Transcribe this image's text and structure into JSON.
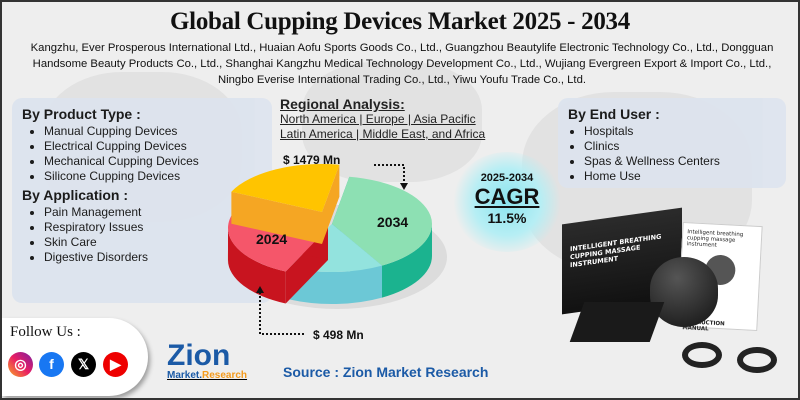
{
  "title": "Global Cupping Devices Market 2025 - 2034",
  "key_players": "Kangzhu, Ever Prosperous International Ltd., Huaian Aofu Sports Goods Co., Ltd., Guangzhou Beautylife Electronic Technology Co., Ltd., Dongguan Handsome Beauty Products Co., Ltd., Shanghai Kangzhu Medical Technology Development Co., Ltd., Wujiang Evergreen Export & Import Co., Ltd., Ningbo Everise International Trading Co., Ltd., Yiwu Youfu Trade Co., Ltd.",
  "product_type": {
    "heading": "By Product Type :",
    "items": [
      "Manual Cupping Devices",
      "Electrical Cupping Devices",
      "Mechanical Cupping Devices",
      "Silicone Cupping Devices"
    ]
  },
  "application": {
    "heading": "By Application :",
    "items": [
      "Pain Management",
      "Respiratory Issues",
      "Skin Care",
      "Digestive Disorders"
    ]
  },
  "end_user": {
    "heading": "By End User :",
    "items": [
      "Hospitals",
      "Clinics",
      "Spas & Wellness Centers",
      "Home Use"
    ]
  },
  "regional": {
    "heading": "Regional Analysis:",
    "line1": "North America | Europe | Asia Pacific",
    "line2": "Latin America | Middle East, and Africa"
  },
  "pie": {
    "label_2034": "2034",
    "label_2024": "2024",
    "value_2034": "$ 1479 Mn",
    "value_2024": "$ 498 Mn",
    "colors": {
      "green": "#8de0b3",
      "red": "#f5566a",
      "yellow": "#ffc400",
      "cyan": "#93e3de"
    }
  },
  "cagr": {
    "period": "2025-2034",
    "label": "CAGR",
    "value": "11.5%"
  },
  "product_box": {
    "line1": "INTELLIGENT BREATHING",
    "line2": "CUPPING MASSAGE INSTRUMENT",
    "manual_title": "Intelligent breathing cupping massage instrument",
    "manual_footer": "INSTRUCTION MANUAL"
  },
  "follow": {
    "label": "Follow Us :",
    "icons": [
      "instagram-icon",
      "facebook-icon",
      "x-icon",
      "youtube-icon"
    ]
  },
  "logo": {
    "text": "Zion",
    "sub1": "Market.",
    "sub2": "Research"
  },
  "source": "Source : Zion Market Research"
}
